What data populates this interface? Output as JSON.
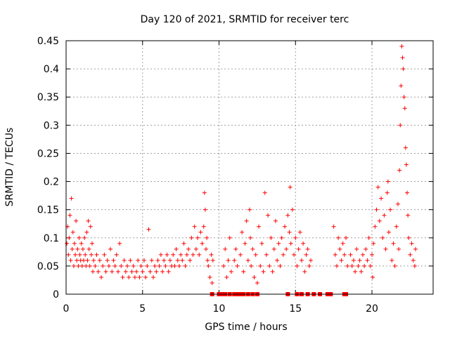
{
  "chart_data": {
    "type": "scatter",
    "title": "Day 120 of 2021, SRMTID for receiver terc",
    "xlabel": "GPS time / hours",
    "ylabel": "SRMTID / TECUs",
    "xlim": [
      0,
      24
    ],
    "ylim": [
      0,
      0.45
    ],
    "xticks": [
      0,
      5,
      10,
      15,
      20
    ],
    "xtick_labels": [
      "0",
      "5",
      "10",
      "15",
      "20"
    ],
    "yticks": [
      0,
      0.05,
      0.1,
      0.15,
      0.2,
      0.25,
      0.3,
      0.35,
      0.4,
      0.45
    ],
    "ytick_labels": [
      "0",
      "0.05",
      "0.1",
      "0.15",
      "0.2",
      "0.25",
      "0.3",
      "0.35",
      "0.4",
      "0.45"
    ],
    "grid": true,
    "marker": "plus",
    "color": "#ff0000",
    "series": [
      {
        "name": "SRMTID",
        "points": [
          [
            0.05,
            0.09
          ],
          [
            0.1,
            0.12
          ],
          [
            0.15,
            0.07
          ],
          [
            0.2,
            0.1
          ],
          [
            0.25,
            0.14
          ],
          [
            0.3,
            0.06
          ],
          [
            0.35,
            0.17
          ],
          [
            0.4,
            0.08
          ],
          [
            0.45,
            0.11
          ],
          [
            0.5,
            0.05
          ],
          [
            0.55,
            0.09
          ],
          [
            0.6,
            0.07
          ],
          [
            0.65,
            0.13
          ],
          [
            0.7,
            0.06
          ],
          [
            0.75,
            0.08
          ],
          [
            0.8,
            0.05
          ],
          [
            0.85,
            0.1
          ],
          [
            0.9,
            0.07
          ],
          [
            0.95,
            0.06
          ],
          [
            1.0,
            0.09
          ],
          [
            1.05,
            0.05
          ],
          [
            1.1,
            0.08
          ],
          [
            1.15,
            0.06
          ],
          [
            1.2,
            0.1
          ],
          [
            1.25,
            0.07
          ],
          [
            1.3,
            0.05
          ],
          [
            1.35,
            0.11
          ],
          [
            1.4,
            0.06
          ],
          [
            1.45,
            0.13
          ],
          [
            1.5,
            0.08
          ],
          [
            1.55,
            0.05
          ],
          [
            1.6,
            0.12
          ],
          [
            1.65,
            0.07
          ],
          [
            1.7,
            0.09
          ],
          [
            1.75,
            0.04
          ],
          [
            1.8,
            0.06
          ],
          [
            1.9,
            0.05
          ],
          [
            2.0,
            0.07
          ],
          [
            2.1,
            0.04
          ],
          [
            2.2,
            0.06
          ],
          [
            2.3,
            0.03
          ],
          [
            2.4,
            0.05
          ],
          [
            2.5,
            0.07
          ],
          [
            2.6,
            0.04
          ],
          [
            2.7,
            0.06
          ],
          [
            2.8,
            0.05
          ],
          [
            2.9,
            0.08
          ],
          [
            3.0,
            0.04
          ],
          [
            3.1,
            0.06
          ],
          [
            3.2,
            0.05
          ],
          [
            3.3,
            0.07
          ],
          [
            3.4,
            0.04
          ],
          [
            3.5,
            0.09
          ],
          [
            3.6,
            0.05
          ],
          [
            3.7,
            0.03
          ],
          [
            3.8,
            0.06
          ],
          [
            3.9,
            0.04
          ],
          [
            4.0,
            0.05
          ],
          [
            4.1,
            0.03
          ],
          [
            4.2,
            0.06
          ],
          [
            4.3,
            0.04
          ],
          [
            4.4,
            0.05
          ],
          [
            4.5,
            0.03
          ],
          [
            4.6,
            0.04
          ],
          [
            4.7,
            0.06
          ],
          [
            4.8,
            0.03
          ],
          [
            4.9,
            0.05
          ],
          [
            5.0,
            0.04
          ],
          [
            5.1,
            0.06
          ],
          [
            5.2,
            0.03
          ],
          [
            5.3,
            0.05
          ],
          [
            5.4,
            0.115
          ],
          [
            5.5,
            0.04
          ],
          [
            5.6,
            0.06
          ],
          [
            5.7,
            0.03
          ],
          [
            5.8,
            0.05
          ],
          [
            5.9,
            0.04
          ],
          [
            6.0,
            0.06
          ],
          [
            6.1,
            0.05
          ],
          [
            6.2,
            0.07
          ],
          [
            6.3,
            0.04
          ],
          [
            6.4,
            0.06
          ],
          [
            6.5,
            0.05
          ],
          [
            6.6,
            0.07
          ],
          [
            6.7,
            0.04
          ],
          [
            6.8,
            0.06
          ],
          [
            6.9,
            0.05
          ],
          [
            7.0,
            0.07
          ],
          [
            7.1,
            0.05
          ],
          [
            7.2,
            0.08
          ],
          [
            7.3,
            0.06
          ],
          [
            7.4,
            0.05
          ],
          [
            7.5,
            0.07
          ],
          [
            7.6,
            0.06
          ],
          [
            7.7,
            0.09
          ],
          [
            7.8,
            0.05
          ],
          [
            7.9,
            0.07
          ],
          [
            8.0,
            0.08
          ],
          [
            8.1,
            0.06
          ],
          [
            8.2,
            0.1
          ],
          [
            8.3,
            0.07
          ],
          [
            8.4,
            0.12
          ],
          [
            8.5,
            0.08
          ],
          [
            8.6,
            0.1
          ],
          [
            8.7,
            0.07
          ],
          [
            8.8,
            0.11
          ],
          [
            8.9,
            0.09
          ],
          [
            9.0,
            0.12
          ],
          [
            9.05,
            0.18
          ],
          [
            9.1,
            0.15
          ],
          [
            9.15,
            0.08
          ],
          [
            9.2,
            0.1
          ],
          [
            9.25,
            0.06
          ],
          [
            9.3,
            0.05
          ],
          [
            9.4,
            0.03
          ],
          [
            9.5,
            0.07
          ],
          [
            9.55,
            0.02
          ],
          [
            9.6,
            0.06
          ],
          [
            10.3,
            0.05
          ],
          [
            10.4,
            0.08
          ],
          [
            10.5,
            0.03
          ],
          [
            10.6,
            0.06
          ],
          [
            10.7,
            0.1
          ],
          [
            10.8,
            0.04
          ],
          [
            11.0,
            0.06
          ],
          [
            11.1,
            0.08
          ],
          [
            11.2,
            0.05
          ],
          [
            11.4,
            0.07
          ],
          [
            11.5,
            0.11
          ],
          [
            11.6,
            0.04
          ],
          [
            11.7,
            0.09
          ],
          [
            11.8,
            0.13
          ],
          [
            11.9,
            0.06
          ],
          [
            12.0,
            0.15
          ],
          [
            12.05,
            0.1
          ],
          [
            12.1,
            0.05
          ],
          [
            12.2,
            0.08
          ],
          [
            12.3,
            0.03
          ],
          [
            12.4,
            0.07
          ],
          [
            12.5,
            0.02
          ],
          [
            12.6,
            0.12
          ],
          [
            12.7,
            0.05
          ],
          [
            12.8,
            0.09
          ],
          [
            12.9,
            0.04
          ],
          [
            13.0,
            0.18
          ],
          [
            13.1,
            0.07
          ],
          [
            13.2,
            0.14
          ],
          [
            13.3,
            0.05
          ],
          [
            13.4,
            0.1
          ],
          [
            13.5,
            0.04
          ],
          [
            13.6,
            0.08
          ],
          [
            13.7,
            0.13
          ],
          [
            13.8,
            0.06
          ],
          [
            13.9,
            0.09
          ],
          [
            14.0,
            0.05
          ],
          [
            14.1,
            0.1
          ],
          [
            14.2,
            0.07
          ],
          [
            14.3,
            0.12
          ],
          [
            14.4,
            0.08
          ],
          [
            14.5,
            0.14
          ],
          [
            14.6,
            0.11
          ],
          [
            14.65,
            0.19
          ],
          [
            14.7,
            0.09
          ],
          [
            14.8,
            0.15
          ],
          [
            14.9,
            0.07
          ],
          [
            15.0,
            0.1
          ],
          [
            15.1,
            0.05
          ],
          [
            15.2,
            0.08
          ],
          [
            15.3,
            0.11
          ],
          [
            15.4,
            0.06
          ],
          [
            15.5,
            0.09
          ],
          [
            15.6,
            0.04
          ],
          [
            15.7,
            0.07
          ],
          [
            15.8,
            0.08
          ],
          [
            15.9,
            0.05
          ],
          [
            16.0,
            0.06
          ],
          [
            17.5,
            0.12
          ],
          [
            17.6,
            0.07
          ],
          [
            17.7,
            0.05
          ],
          [
            17.8,
            0.1
          ],
          [
            17.9,
            0.08
          ],
          [
            18.0,
            0.06
          ],
          [
            18.1,
            0.09
          ],
          [
            18.2,
            0.07
          ],
          [
            18.3,
            0.1
          ],
          [
            18.4,
            0.05
          ],
          [
            18.6,
            0.07
          ],
          [
            18.7,
            0.05
          ],
          [
            18.8,
            0.06
          ],
          [
            18.9,
            0.04
          ],
          [
            19.0,
            0.08
          ],
          [
            19.1,
            0.05
          ],
          [
            19.2,
            0.06
          ],
          [
            19.3,
            0.04
          ],
          [
            19.4,
            0.07
          ],
          [
            19.5,
            0.05
          ],
          [
            19.6,
            0.08
          ],
          [
            19.7,
            0.06
          ],
          [
            19.8,
            0.1
          ],
          [
            19.9,
            0.05
          ],
          [
            20.0,
            0.07
          ],
          [
            20.05,
            0.03
          ],
          [
            20.1,
            0.09
          ],
          [
            20.2,
            0.12
          ],
          [
            20.3,
            0.15
          ],
          [
            20.4,
            0.19
          ],
          [
            20.5,
            0.13
          ],
          [
            20.6,
            0.17
          ],
          [
            20.7,
            0.1
          ],
          [
            20.8,
            0.14
          ],
          [
            20.9,
            0.08
          ],
          [
            21.0,
            0.18
          ],
          [
            21.05,
            0.2
          ],
          [
            21.1,
            0.11
          ],
          [
            21.2,
            0.15
          ],
          [
            21.3,
            0.06
          ],
          [
            21.4,
            0.09
          ],
          [
            21.5,
            0.05
          ],
          [
            21.6,
            0.12
          ],
          [
            21.7,
            0.16
          ],
          [
            21.75,
            0.08
          ],
          [
            21.8,
            0.22
          ],
          [
            21.85,
            0.3
          ],
          [
            21.9,
            0.37
          ],
          [
            21.95,
            0.44
          ],
          [
            22.0,
            0.42
          ],
          [
            22.05,
            0.4
          ],
          [
            22.1,
            0.35
          ],
          [
            22.15,
            0.33
          ],
          [
            22.2,
            0.26
          ],
          [
            22.25,
            0.23
          ],
          [
            22.3,
            0.18
          ],
          [
            22.35,
            0.14
          ],
          [
            22.4,
            0.1
          ],
          [
            22.5,
            0.07
          ],
          [
            22.6,
            0.09
          ],
          [
            22.7,
            0.06
          ],
          [
            22.8,
            0.05
          ],
          [
            22.85,
            0.08
          ]
        ]
      }
    ],
    "zero_markers": [
      9.55,
      10.0,
      10.2,
      10.4,
      10.7,
      11.0,
      11.2,
      11.4,
      11.6,
      11.9,
      12.2,
      12.5,
      14.5,
      15.1,
      15.4,
      15.8,
      16.2,
      16.6,
      17.1,
      17.3,
      18.2,
      18.3
    ]
  }
}
